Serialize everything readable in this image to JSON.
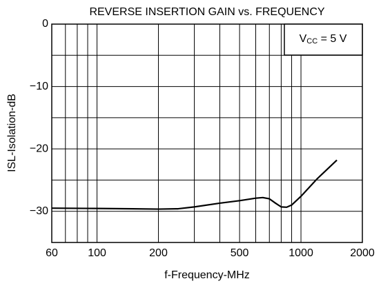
{
  "chart_data": {
    "type": "line",
    "title": "REVERSE INSERTION GAIN vs. FREQUENCY",
    "x_label": "f-Frequency-MHz",
    "y_label": "ISL-Isolation-dB",
    "annotation": {
      "main": "V",
      "sub": "CC",
      "rest": " = 5 V"
    },
    "log_x": true,
    "grid": true,
    "xlim": [
      60,
      2000
    ],
    "xticks": [
      60,
      100,
      200,
      500,
      1000,
      2000
    ],
    "xminor": [
      70,
      80,
      90,
      300,
      400,
      600,
      700,
      800,
      900
    ],
    "ylim": [
      -35,
      0
    ],
    "yticks": [
      0,
      {
        "value": -10,
        "label": "−10"
      },
      {
        "value": -20,
        "label": "−20"
      },
      {
        "value": -30,
        "label": "−30"
      }
    ],
    "yminor": [
      -5,
      -15,
      -25
    ],
    "series": [
      {
        "color": "#000000",
        "x": [
          60,
          100,
          150,
          200,
          250,
          300,
          400,
          500,
          600,
          650,
          700,
          750,
          800,
          850,
          900,
          1000,
          1200,
          1500
        ],
        "values": [
          -29.5,
          -29.55,
          -29.6,
          -29.65,
          -29.6,
          -29.3,
          -28.7,
          -28.3,
          -27.9,
          -27.8,
          -28.0,
          -28.7,
          -29.3,
          -29.35,
          -29.0,
          -27.6,
          -24.8,
          -21.8
        ]
      }
    ]
  }
}
